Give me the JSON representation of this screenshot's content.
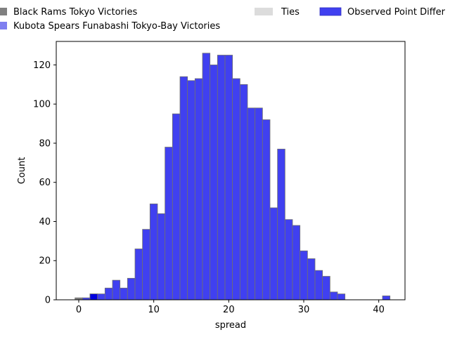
{
  "chart_data": {
    "type": "bar",
    "subtype": "histogram",
    "xlabel": "spread",
    "ylabel": "Count",
    "xlim": [
      -3,
      43.5
    ],
    "ylim": [
      0,
      132
    ],
    "xticks": [
      0,
      10,
      20,
      30,
      40
    ],
    "yticks": [
      0,
      20,
      40,
      60,
      80,
      100,
      120
    ],
    "bin_width": 1,
    "legend": {
      "placement": "top",
      "entries": [
        {
          "label": "Black Rams Tokyo Victories",
          "color": "#808080"
        },
        {
          "label": "Kubota Spears Funabashi Tokyo-Bay Victories",
          "color": "#7f7ff0"
        },
        {
          "label": "Ties",
          "color": "#dcdcdc"
        },
        {
          "label": "Observed Point Differ",
          "color": "#4040f0"
        }
      ]
    },
    "series": [
      {
        "name": "Black Rams Tokyo Victories",
        "color": "#808080",
        "bins": [
          {
            "x": 0,
            "count": 1
          }
        ]
      },
      {
        "name": "Kubota Spears Funabashi Tokyo-Bay Victories",
        "color": "#4040f0",
        "bins": [
          {
            "x": 1,
            "count": 1
          },
          {
            "x": 2,
            "count": 3
          },
          {
            "x": 3,
            "count": 3
          },
          {
            "x": 4,
            "count": 6
          },
          {
            "x": 5,
            "count": 10
          },
          {
            "x": 6,
            "count": 6
          },
          {
            "x": 7,
            "count": 11
          },
          {
            "x": 8,
            "count": 26
          },
          {
            "x": 9,
            "count": 36
          },
          {
            "x": 10,
            "count": 49
          },
          {
            "x": 11,
            "count": 44
          },
          {
            "x": 12,
            "count": 78
          },
          {
            "x": 13,
            "count": 95
          },
          {
            "x": 14,
            "count": 114
          },
          {
            "x": 15,
            "count": 112
          },
          {
            "x": 16,
            "count": 113
          },
          {
            "x": 17,
            "count": 126
          },
          {
            "x": 18,
            "count": 120
          },
          {
            "x": 19,
            "count": 125
          },
          {
            "x": 20,
            "count": 125
          },
          {
            "x": 21,
            "count": 113
          },
          {
            "x": 22,
            "count": 110
          },
          {
            "x": 23,
            "count": 98
          },
          {
            "x": 24,
            "count": 98
          },
          {
            "x": 25,
            "count": 92
          },
          {
            "x": 26,
            "count": 47
          },
          {
            "x": 27,
            "count": 77
          },
          {
            "x": 28,
            "count": 41
          },
          {
            "x": 29,
            "count": 38
          },
          {
            "x": 30,
            "count": 25
          },
          {
            "x": 31,
            "count": 21
          },
          {
            "x": 32,
            "count": 15
          },
          {
            "x": 33,
            "count": 12
          },
          {
            "x": 34,
            "count": 4
          },
          {
            "x": 35,
            "count": 3
          },
          {
            "x": 41,
            "count": 2
          }
        ]
      }
    ],
    "observed": {
      "name": "Observed Point Differ",
      "x": 2,
      "count": 3,
      "color": "#0000e0"
    }
  }
}
